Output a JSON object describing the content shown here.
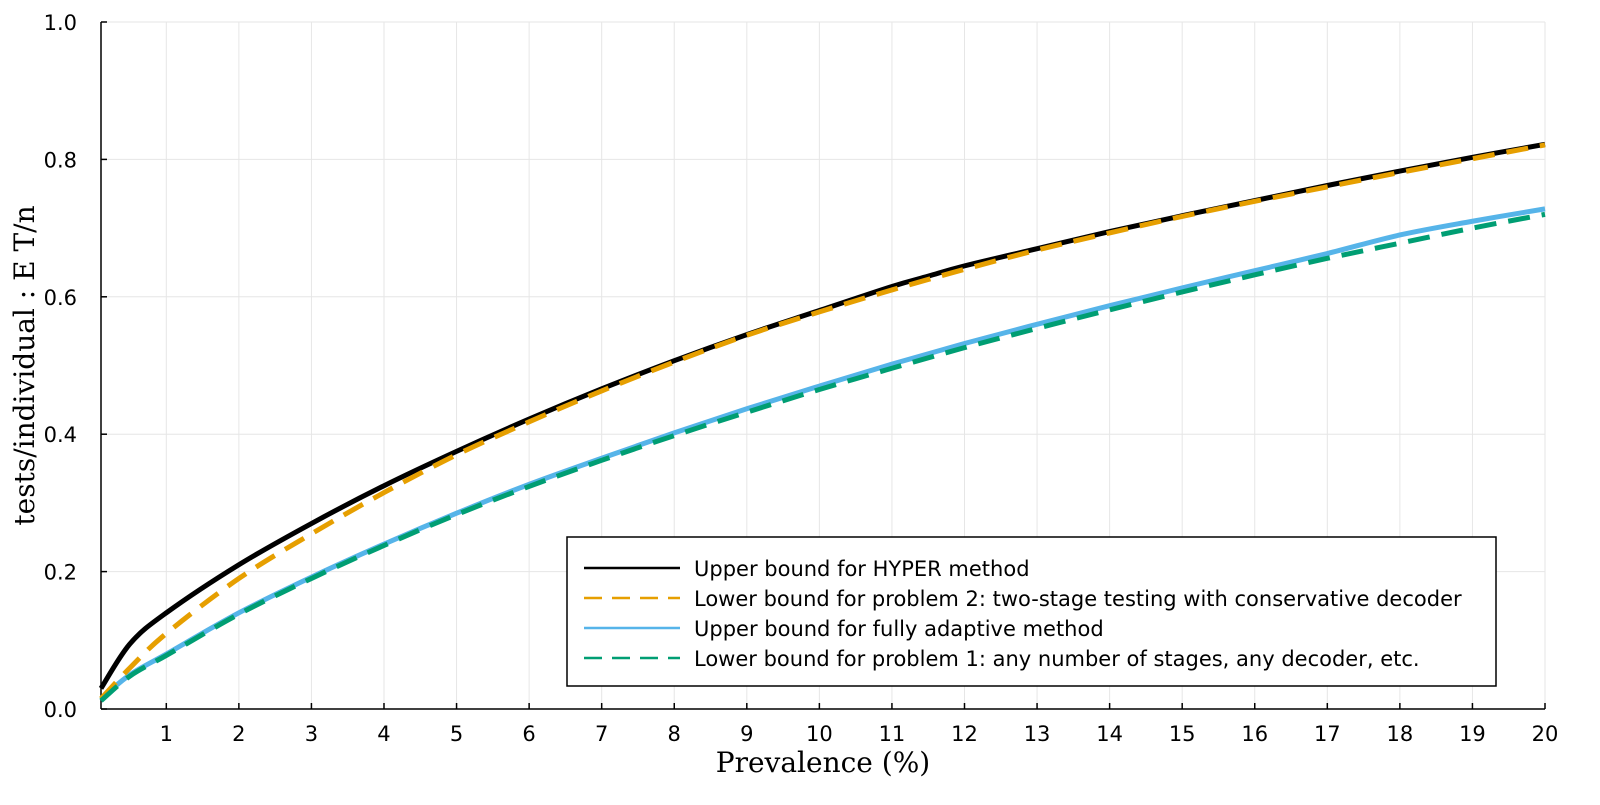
{
  "chart_data": {
    "type": "line",
    "xlabel": "Prevalence (%)",
    "ylabel": "tests/individual : E T/n",
    "xlim": [
      0.1,
      20
    ],
    "ylim": [
      0,
      1
    ],
    "x_ticks": [
      1,
      2,
      3,
      4,
      5,
      6,
      7,
      8,
      9,
      10,
      11,
      12,
      13,
      14,
      15,
      16,
      17,
      18,
      19,
      20
    ],
    "y_ticks": [
      0.0,
      0.2,
      0.4,
      0.6,
      0.8,
      1.0
    ],
    "y_tick_labels": [
      "0.0",
      "0.2",
      "0.4",
      "0.6",
      "0.8",
      "1.0"
    ],
    "grid": true,
    "legend_position": "bottom-right",
    "series": [
      {
        "name": "Upper bound for HYPER method",
        "color": "#000000",
        "style": "solid",
        "x": [
          0.1,
          0.5,
          1,
          2,
          3,
          4,
          5,
          6,
          7,
          8,
          9,
          10,
          11,
          11.5,
          12,
          13,
          14,
          15,
          16,
          17,
          18,
          19,
          20
        ],
        "y": [
          0.03,
          0.095,
          0.14,
          0.21,
          0.27,
          0.325,
          0.375,
          0.422,
          0.466,
          0.507,
          0.545,
          0.58,
          0.615,
          0.63,
          0.645,
          0.67,
          0.695,
          0.718,
          0.74,
          0.762,
          0.783,
          0.803,
          0.822
        ]
      },
      {
        "name": "Lower bound for problem 2: two-stage testing with conservative decoder",
        "color": "#E69F00",
        "style": "dashed",
        "x": [
          0.1,
          0.5,
          1,
          2,
          3,
          4,
          5,
          6,
          7,
          8,
          9,
          10,
          11,
          12,
          13,
          14,
          15,
          16,
          17,
          18,
          19,
          20
        ],
        "y": [
          0.015,
          0.06,
          0.11,
          0.19,
          0.255,
          0.315,
          0.37,
          0.418,
          0.463,
          0.505,
          0.544,
          0.578,
          0.61,
          0.64,
          0.668,
          0.693,
          0.717,
          0.739,
          0.76,
          0.781,
          0.801,
          0.821
        ]
      },
      {
        "name": "Upper bound for fully adaptive method",
        "color": "#56B4E9",
        "style": "solid",
        "x": [
          0.1,
          0.5,
          1,
          2,
          3,
          4,
          5,
          6,
          7,
          8,
          9,
          10,
          11,
          12,
          13,
          14,
          15,
          16,
          17,
          18,
          19,
          20
        ],
        "y": [
          0.015,
          0.05,
          0.08,
          0.14,
          0.192,
          0.24,
          0.285,
          0.327,
          0.365,
          0.402,
          0.437,
          0.47,
          0.502,
          0.532,
          0.56,
          0.587,
          0.613,
          0.638,
          0.663,
          0.69,
          0.71,
          0.728
        ]
      },
      {
        "name": "Lower bound for problem 1: any number of stages, any decoder, etc.",
        "color": "#009E73",
        "style": "dashed",
        "x": [
          0.1,
          0.5,
          1,
          2,
          3,
          4,
          5,
          6,
          7,
          8,
          9,
          10,
          11,
          12,
          13,
          14,
          15,
          16,
          17,
          18,
          19,
          20
        ],
        "y": [
          0.012,
          0.048,
          0.078,
          0.138,
          0.19,
          0.238,
          0.283,
          0.324,
          0.362,
          0.398,
          0.432,
          0.465,
          0.496,
          0.526,
          0.554,
          0.581,
          0.607,
          0.632,
          0.656,
          0.678,
          0.7,
          0.72
        ]
      }
    ]
  }
}
